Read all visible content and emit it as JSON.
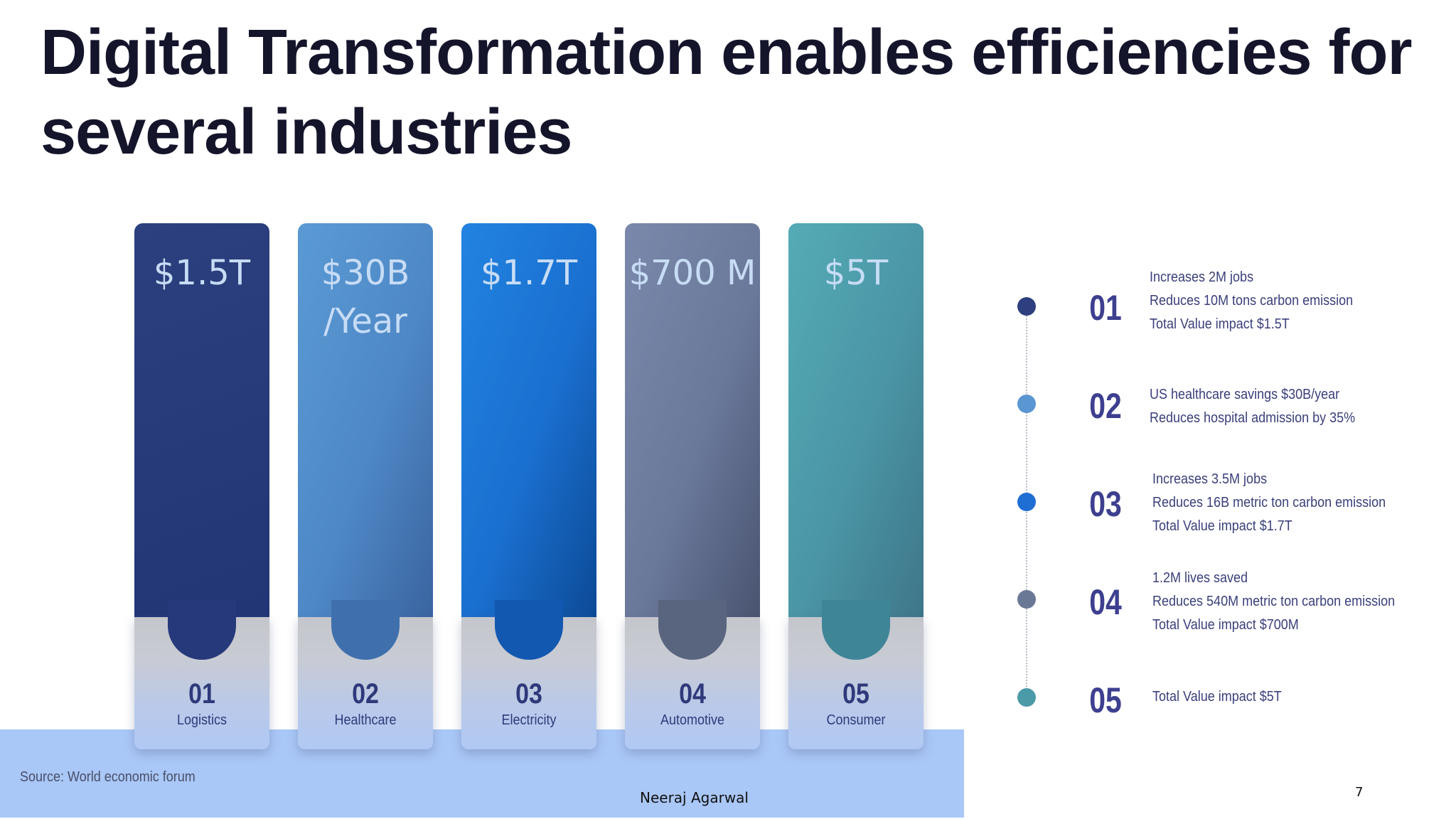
{
  "slide": {
    "title": "Digital Transformation enables efficiencies for several industries",
    "source": "Source: World economic forum",
    "author": "Neeraj Agarwal",
    "page_number": "7"
  },
  "columns": [
    {
      "value": "$1.5T",
      "number": "01",
      "label": "Logistics",
      "color_top": "#2c3f7e",
      "color_bottom": "#223676"
    },
    {
      "value": "$30B /Year",
      "number": "02",
      "label": "Healthcare",
      "color_top": "#5694d0",
      "color_bottom": "#3c69a6"
    },
    {
      "value": "$1.7T",
      "number": "03",
      "label": "Electricity",
      "color_top": "#1e79d8",
      "color_bottom": "#0c4f9c"
    },
    {
      "value": "$700 M",
      "number": "04",
      "label": "Automotive",
      "color_top": "#707fa1",
      "color_bottom": "#4c5670"
    },
    {
      "value": "$5T",
      "number": "05",
      "label": "Consumer",
      "color_top": "#51a6b3",
      "color_bottom": "#3f7a8c"
    }
  ],
  "timeline": [
    {
      "number": "01",
      "dot_color": "#2d3f7f",
      "lines": [
        "Increases 2M jobs",
        "Reduces 10M tons carbon emission",
        "Total Value impact $1.5T"
      ]
    },
    {
      "number": "02",
      "dot_color": "#5a96d2",
      "lines": [
        "US healthcare savings $30B/year",
        "Reduces hospital admission by 35%"
      ]
    },
    {
      "number": "03",
      "dot_color": "#1f6ed4",
      "lines": [
        "Increases 3.5M jobs",
        "Reduces 16B metric ton carbon emission",
        "Total Value impact $1.7T"
      ]
    },
    {
      "number": "04",
      "dot_color": "#6a7896",
      "lines": [
        "1.2M lives saved",
        "Reduces 540M metric ton carbon emission",
        "Total Value impact $700M"
      ]
    },
    {
      "number": "05",
      "dot_color": "#4a9aa8",
      "lines": [
        "Total Value impact $5T"
      ]
    }
  ]
}
